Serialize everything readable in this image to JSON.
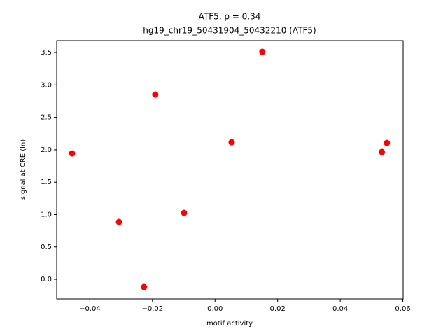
{
  "chart_data": {
    "type": "scatter",
    "title": "ATF5, ρ = 0.34",
    "subtitle": "hg19_chr19_50431904_50432210 (ATF5)",
    "x_label": "motif activity",
    "y_label": "signal at CRE (ln)",
    "color": "#ff0000",
    "x": [
      -0.0457,
      -0.0307,
      -0.0227,
      -0.0191,
      -0.0099,
      0.0053,
      0.0151,
      0.0533,
      0.0549
    ],
    "values": [
      1.944,
      0.886,
      -0.119,
      2.852,
      1.026,
      2.117,
      3.511,
      1.966,
      2.106
    ],
    "xlim": [
      -0.0506,
      0.0601
    ],
    "ylim": [
      -0.302,
      3.684
    ],
    "xticks": [
      {
        "value": -0.04,
        "label": "−0.04"
      },
      {
        "value": -0.02,
        "label": "−0.02"
      },
      {
        "value": 0,
        "label": "0.00"
      },
      {
        "value": 0.02,
        "label": "0.02"
      },
      {
        "value": 0.04,
        "label": "0.04"
      },
      {
        "value": 0.06,
        "label": "0.06"
      }
    ],
    "yticks": [
      {
        "value": 0,
        "label": "0.0"
      },
      {
        "value": 0.5,
        "label": "0.5"
      },
      {
        "value": 1,
        "label": "1.0"
      },
      {
        "value": 1.5,
        "label": "1.5"
      },
      {
        "value": 2,
        "label": "2.0"
      },
      {
        "value": 2.5,
        "label": "2.5"
      },
      {
        "value": 3,
        "label": "3.0"
      },
      {
        "value": 3.5,
        "label": "3.5"
      }
    ]
  }
}
